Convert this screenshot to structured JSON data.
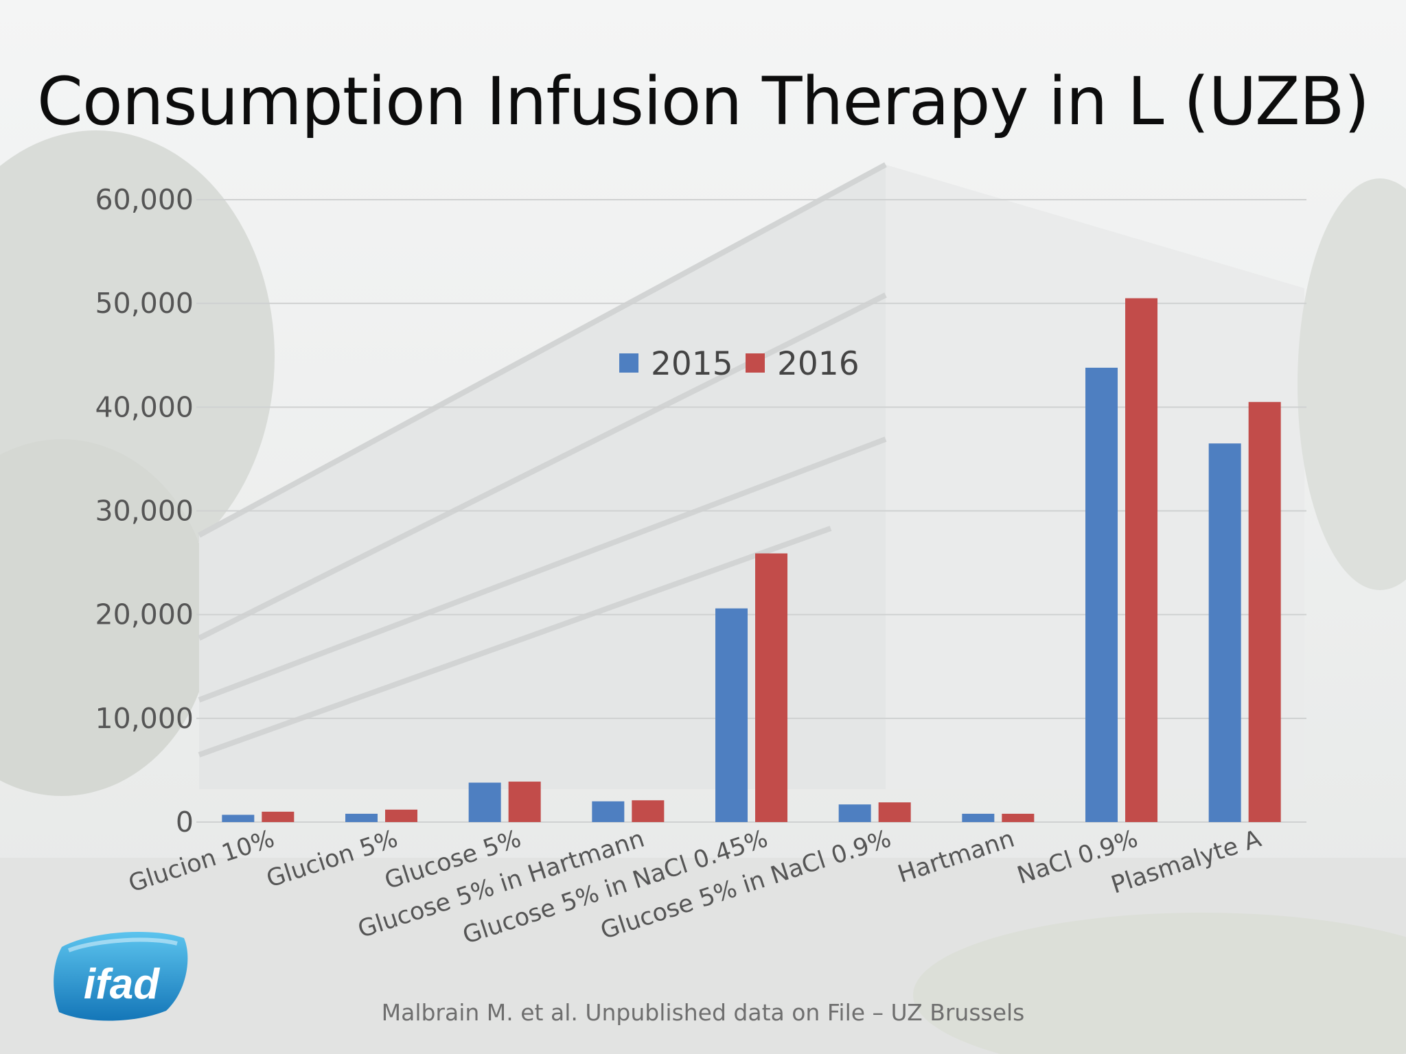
{
  "slide": {
    "title": "Consumption Infusion Therapy in L (UZB)",
    "footer": "Malbrain M. et al. Unpublished data on File – UZ Brussels",
    "logo_text": "ifad"
  },
  "chart_data": {
    "type": "bar",
    "title": "Consumption Infusion Therapy in L (UZB)",
    "xlabel": "",
    "ylabel": "",
    "ylim": [
      0,
      60000
    ],
    "yticks": [
      0,
      10000,
      20000,
      30000,
      40000,
      50000,
      60000
    ],
    "ytick_labels": [
      "0",
      "10,000",
      "20,000",
      "30,000",
      "40,000",
      "50,000",
      "60,000"
    ],
    "grid": true,
    "legend_position": "top-center",
    "categories": [
      "Glucion 10%",
      "Glucion 5%",
      "Glucose 5%",
      "Glucose 5% in Hartmann",
      "Glucose 5% in NaCl 0.45%",
      "Glucose 5% in NaCl 0.9%",
      "Hartmann",
      "NaCl 0.9%",
      "Plasmalyte A"
    ],
    "series": [
      {
        "name": "2015",
        "color": "#4e7fc1",
        "values": [
          700,
          800,
          3800,
          2000,
          20600,
          1700,
          800,
          43800,
          36500
        ]
      },
      {
        "name": "2016",
        "color": "#c24c4a",
        "values": [
          1000,
          1200,
          3900,
          2100,
          25900,
          1900,
          800,
          50500,
          40500
        ]
      }
    ]
  }
}
